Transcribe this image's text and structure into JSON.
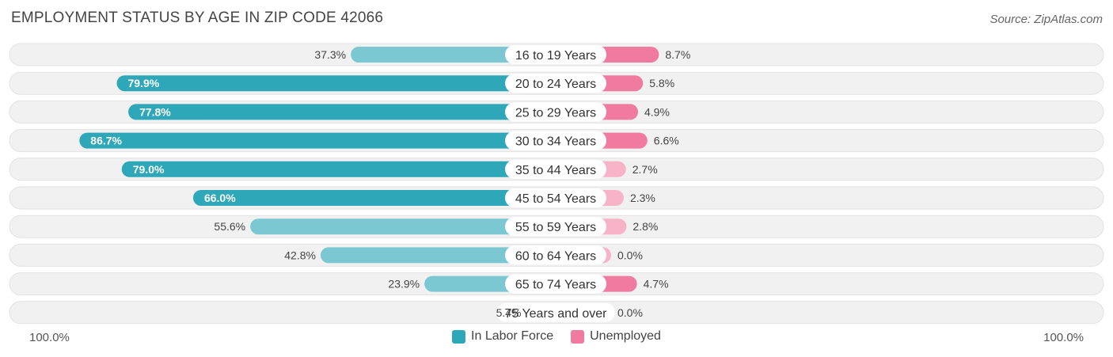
{
  "header": {
    "title": "EMPLOYMENT STATUS BY AGE IN ZIP CODE 42066",
    "source": "Source: ZipAtlas.com"
  },
  "colors": {
    "labor_strong": "#2ea7b8",
    "labor_light": "#7cc8d2",
    "unemp_strong": "#f07aa0",
    "unemp_light": "#f7b3c8",
    "track": "#f1f1f1",
    "track_border": "#e2e2e2"
  },
  "chart_data": {
    "type": "bar",
    "orientation": "diverging-horizontal",
    "title": "EMPLOYMENT STATUS BY AGE IN ZIP CODE 42066",
    "categories": [
      "16 to 19 Years",
      "20 to 24 Years",
      "25 to 29 Years",
      "30 to 34 Years",
      "35 to 44 Years",
      "45 to 54 Years",
      "55 to 59 Years",
      "60 to 64 Years",
      "65 to 74 Years",
      "75 Years and over"
    ],
    "series": [
      {
        "name": "In Labor Force",
        "values": [
          37.3,
          79.9,
          77.8,
          86.7,
          79.0,
          66.0,
          55.6,
          42.8,
          23.9,
          5.4
        ],
        "labels": [
          "37.3%",
          "79.9%",
          "77.8%",
          "86.7%",
          "79.0%",
          "66.0%",
          "55.6%",
          "42.8%",
          "23.9%",
          "5.4%"
        ]
      },
      {
        "name": "Unemployed",
        "values": [
          8.7,
          5.8,
          4.9,
          6.6,
          2.7,
          2.3,
          2.8,
          0.0,
          4.7,
          0.0
        ],
        "labels": [
          "8.7%",
          "5.8%",
          "4.9%",
          "6.6%",
          "2.7%",
          "2.3%",
          "2.8%",
          "0.0%",
          "4.7%",
          "0.0%"
        ]
      }
    ],
    "axis": {
      "left_label": "100.0%",
      "right_label": "100.0%",
      "range": [
        0,
        100
      ]
    },
    "legend": [
      "In Labor Force",
      "Unemployed"
    ],
    "legend_position": "bottom-center"
  }
}
